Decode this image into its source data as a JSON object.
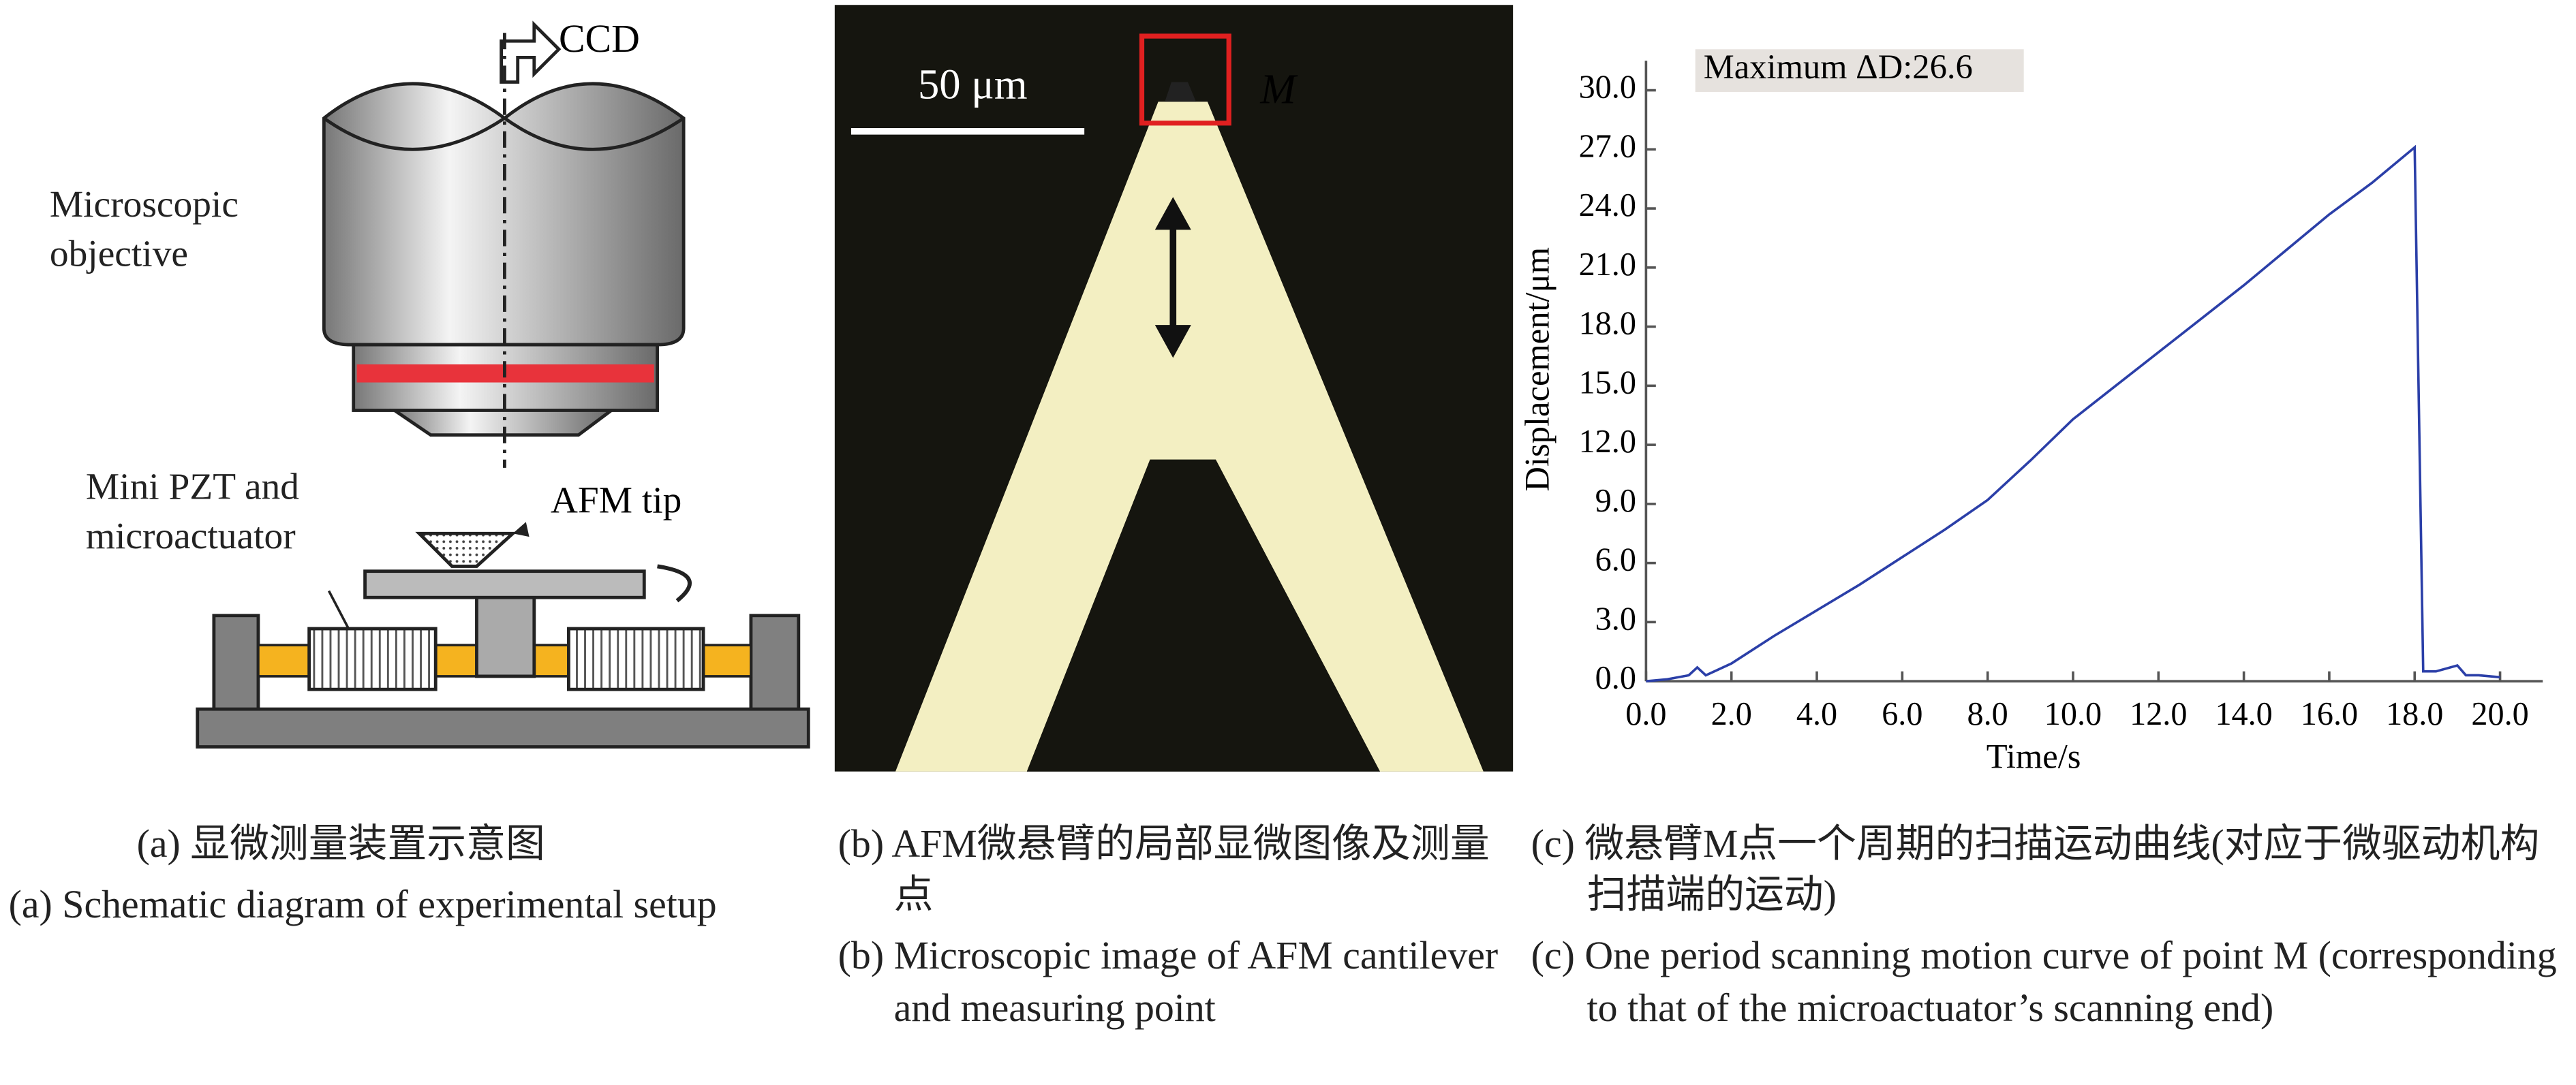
{
  "panel_a": {
    "ccd": "CCD",
    "objective": "Microscopic objective",
    "pzt": "Mini PZT and microactuator",
    "tip": "AFM tip"
  },
  "panel_b": {
    "scale": "50 μm",
    "point": "M"
  },
  "captions": {
    "a_zh": "(a) 显微测量装置示意图",
    "a_en": "(a) Schematic diagram of experimental setup",
    "b_zh": "(b) AFM微悬臂的局部显微图像及测量点",
    "b_en": "(b) Microscopic image of AFM cantilever and measuring point",
    "c_zh": "(c) 微悬臂M点一个周期的扫描运动曲线(对应于微驱动机构扫描端的运动)",
    "c_en": "(c) One period scanning motion curve of point M (corresponding to that of the microactuator’s scanning end)"
  },
  "chart_data": {
    "type": "line",
    "xlabel": "Time/s",
    "ylabel": "Displacement/μm",
    "annotation": "Maximum ΔD:26.6",
    "x": [
      0,
      0.5,
      1,
      1.2,
      1.4,
      2,
      3,
      4,
      5,
      6,
      7,
      8,
      9,
      10,
      11,
      12,
      13,
      14,
      15,
      16,
      17,
      18,
      18.2,
      18.5,
      19,
      19.2,
      19.5,
      20
    ],
    "values": [
      0,
      0.1,
      0.3,
      0.7,
      0.3,
      0.9,
      2.3,
      3.6,
      4.9,
      6.3,
      7.7,
      9.2,
      11.2,
      13.3,
      15.0,
      16.7,
      18.4,
      20.1,
      21.9,
      23.7,
      25.3,
      27.1,
      0.5,
      0.5,
      0.8,
      0.3,
      0.3,
      0.2
    ],
    "color": "#2b3fa8",
    "xlim": [
      0,
      21
    ],
    "ylim": [
      0,
      31.5
    ],
    "xticks": [
      {
        "value": 0,
        "label": "0.0"
      },
      {
        "value": 2,
        "label": "2.0"
      },
      {
        "value": 4,
        "label": "4.0"
      },
      {
        "value": 6,
        "label": "6.0"
      },
      {
        "value": 8,
        "label": "8.0"
      },
      {
        "value": 10,
        "label": "10.0"
      },
      {
        "value": 12,
        "label": "12.0"
      },
      {
        "value": 14,
        "label": "14.0"
      },
      {
        "value": 16,
        "label": "16.0"
      },
      {
        "value": 18,
        "label": "18.0"
      },
      {
        "value": 20,
        "label": "20.0"
      }
    ],
    "yticks": [
      {
        "value": 0,
        "label": "0.0"
      },
      {
        "value": 3,
        "label": "3.0"
      },
      {
        "value": 6,
        "label": "6.0"
      },
      {
        "value": 9,
        "label": "9.0"
      },
      {
        "value": 12,
        "label": "12.0"
      },
      {
        "value": 15,
        "label": "15.0"
      },
      {
        "value": 18,
        "label": "18.0"
      },
      {
        "value": 21,
        "label": "21.0"
      },
      {
        "value": 24,
        "label": "24.0"
      },
      {
        "value": 27,
        "label": "27.0"
      },
      {
        "value": 30,
        "label": "30.0"
      }
    ]
  }
}
